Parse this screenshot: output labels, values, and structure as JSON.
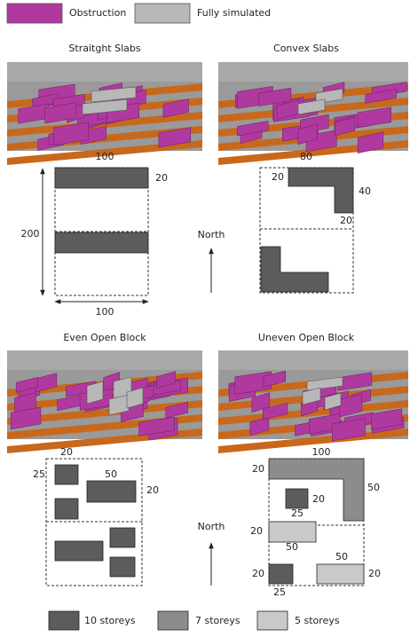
{
  "legend_top": [
    "Obstruction",
    "Fully simulated"
  ],
  "panels": [
    {
      "title": "Straitght Slabs",
      "labels": [
        100,
        20,
        200,
        100
      ]
    },
    {
      "title": "Convex Slabs",
      "labels": [
        80,
        20,
        40,
        20
      ]
    },
    {
      "title": "Even Open Block",
      "labels": [
        20,
        25,
        50,
        20
      ]
    },
    {
      "title": "Uneven Open Block",
      "labels": [
        100,
        20,
        50,
        20,
        25,
        20,
        50,
        50,
        20,
        20,
        25
      ]
    }
  ],
  "north": [
    "North",
    "North"
  ],
  "legend_bottom": [
    "10 storeys",
    "7 storeys",
    "5 storeys"
  ]
}
